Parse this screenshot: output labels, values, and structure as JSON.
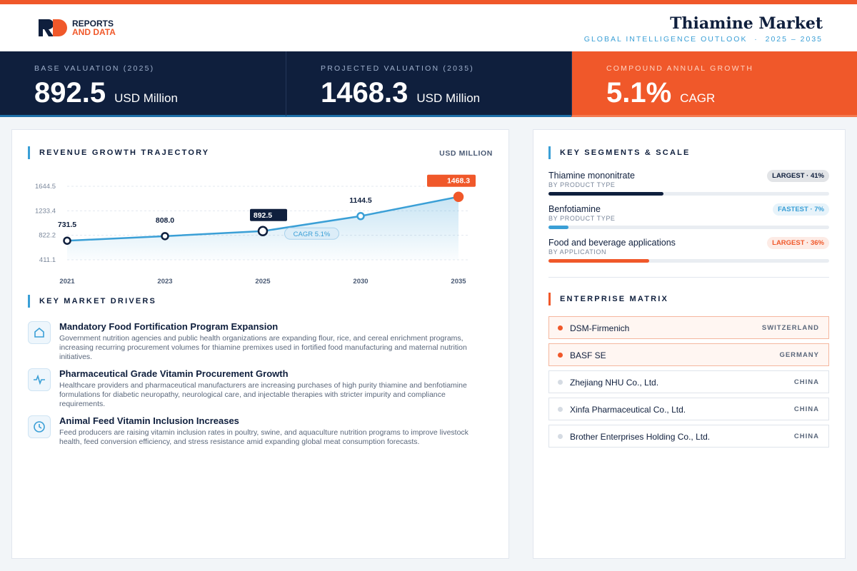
{
  "header": {
    "logo_text": [
      "REPORTS",
      "AND DATA"
    ],
    "title": "Thiamine Market",
    "subtitle": "GLOBAL INTELLIGENCE OUTLOOK  ·  2025 – 2035"
  },
  "kpis": [
    {
      "label": "BASE VALUATION (2025)",
      "value": 892.5,
      "unit": "USD Million"
    },
    {
      "label": "PROJECTED VALUATION (2035)",
      "value": 1468.3,
      "unit": "USD Million"
    },
    {
      "label": "COMPOUND ANNUAL GROWTH",
      "value": "5.1%",
      "unit": "CAGR"
    }
  ],
  "chart_data": {
    "type": "line",
    "title": "REVENUE GROWTH TRAJECTORY",
    "unit_label": "USD MILLION",
    "categories": [
      "2021",
      "2023",
      "2025",
      "2030",
      "2035"
    ],
    "values": [
      731.5,
      808.0,
      892.5,
      1144.5,
      1468.3
    ],
    "value_labels": [
      "731.5",
      "808.0",
      "892.5",
      "1144.5",
      "1468.3"
    ],
    "color": "#3a9fd6",
    "point_colors": [
      "#0f1f3d",
      "#0f1f3d",
      "#0f1f3d",
      "#3a9fd6",
      "#f0582a"
    ],
    "label_fills": [
      null,
      null,
      "#0f1f3d",
      null,
      "#f0582a"
    ],
    "ylim": [
      411.1,
      1644.5
    ],
    "yticks": [
      411.1,
      822.2,
      1233.4,
      1644.5
    ],
    "grid": true,
    "annotation": "CAGR 5.1%"
  },
  "drivers": {
    "title": "KEY MARKET DRIVERS",
    "items": [
      {
        "title": "Mandatory Food Fortification Program Expansion",
        "text": "Government nutrition agencies and public health organizations are expanding flour, rice, and cereal enrichment programs, increasing recurring procurement volumes for thiamine premixes used in fortified food manufacturing and maternal nutrition initiatives."
      },
      {
        "title": "Pharmaceutical Grade Vitamin Procurement Growth",
        "text": "Healthcare providers and pharmaceutical manufacturers are increasing purchases of high purity thiamine and benfotiamine formulations for diabetic neuropathy, neurological care, and injectable therapies with stricter impurity and compliance requirements."
      },
      {
        "title": "Animal Feed Vitamin Inclusion Increases",
        "text": "Feed producers are raising vitamin inclusion rates in poultry, swine, and aquaculture nutrition programs to improve livestock health, feed conversion efficiency, and stress resistance amid expanding global meat consumption forecasts."
      }
    ]
  },
  "segments": {
    "title": "KEY SEGMENTS & SCALE",
    "items": [
      {
        "name": "Thiamine mononitrate",
        "type": "BY PRODUCT TYPE",
        "badge": "LARGEST · 41%",
        "share": 41,
        "color": "#0f1f3d"
      },
      {
        "name": "Benfotiamine",
        "type": "BY PRODUCT TYPE",
        "badge": "FASTEST · 7%",
        "share": 7,
        "color": "#3a9fd6"
      },
      {
        "name": "Food and beverage applications",
        "type": "BY APPLICATION",
        "badge": "LARGEST · 36%",
        "share": 36,
        "color": "#f0582a"
      }
    ]
  },
  "enterprises": {
    "title": "ENTERPRISE MATRIX",
    "items": [
      {
        "name": "DSM-Firmenich",
        "country": "SWITZERLAND",
        "highlighted": true
      },
      {
        "name": "BASF SE",
        "country": "GERMANY",
        "highlighted": true
      },
      {
        "name": "Zhejiang NHU Co., Ltd.",
        "country": "CHINA",
        "highlighted": false
      },
      {
        "name": "Xinfa Pharmaceutical Co., Ltd.",
        "country": "CHINA",
        "highlighted": false
      },
      {
        "name": "Brother Enterprises Holding Co., Ltd.",
        "country": "CHINA",
        "highlighted": false
      }
    ]
  }
}
